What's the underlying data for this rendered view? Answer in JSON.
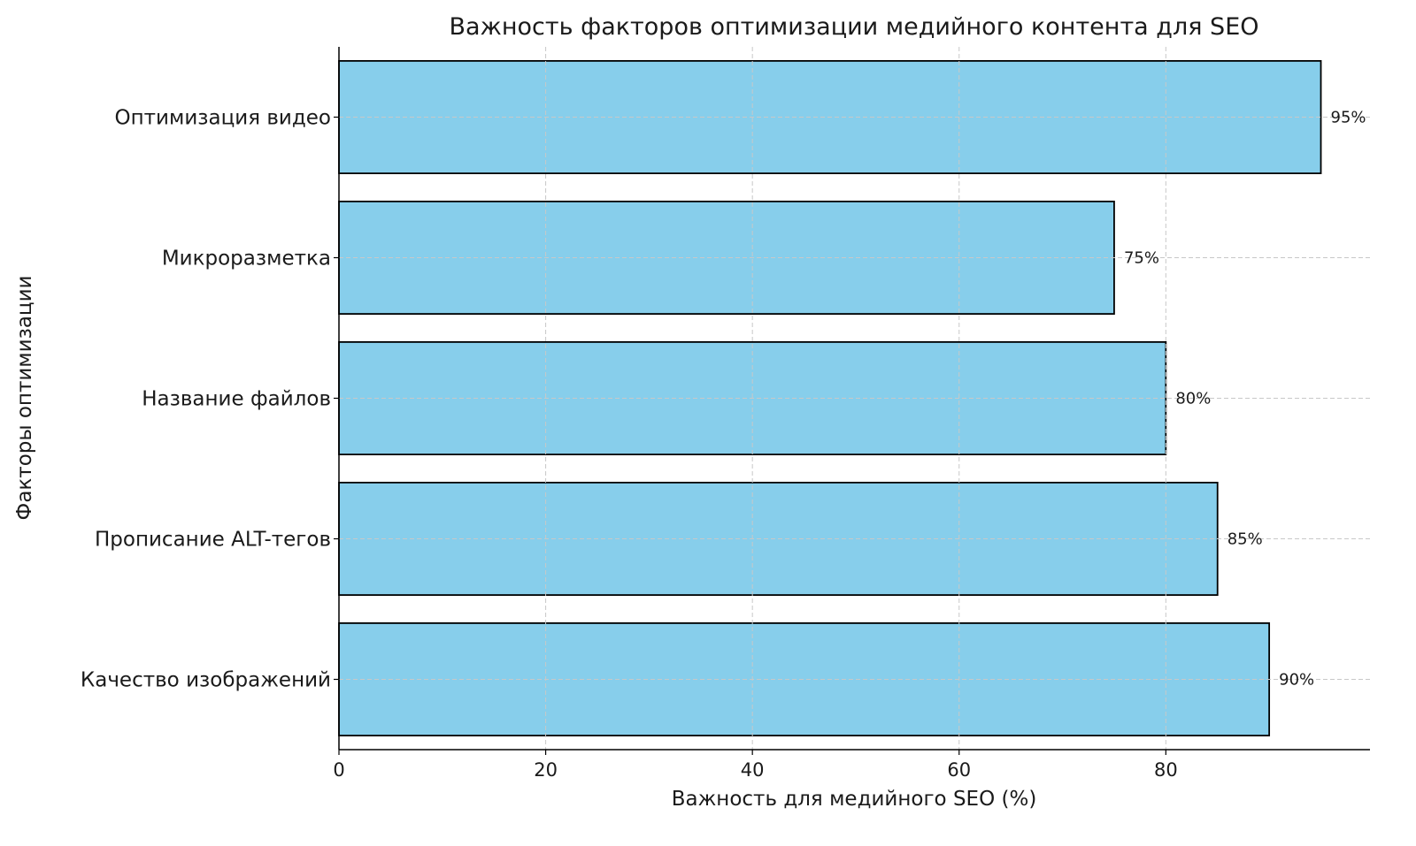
{
  "chart_data": {
    "type": "bar",
    "orientation": "horizontal",
    "title": "Важность факторов оптимизации медийного контента для SEO",
    "xlabel": "Важность для медийного SEO (%)",
    "ylabel": "Факторы оптимизации",
    "categories": [
      "Качество изображений",
      "Прописание ALT-тегов",
      "Название файлов",
      "Микроразметка",
      "Оптимизация видео"
    ],
    "values": [
      90,
      85,
      80,
      75,
      95
    ],
    "data_labels": [
      "90%",
      "85%",
      "80%",
      "75%",
      "95%"
    ],
    "xlim": [
      0,
      99.75
    ],
    "xticks": [
      0,
      20,
      40,
      60,
      80
    ],
    "xtick_labels": [
      "0",
      "20",
      "40",
      "60",
      "80"
    ],
    "grid": true,
    "bar_color": "#87CEEB",
    "edge_color": "#000000"
  }
}
